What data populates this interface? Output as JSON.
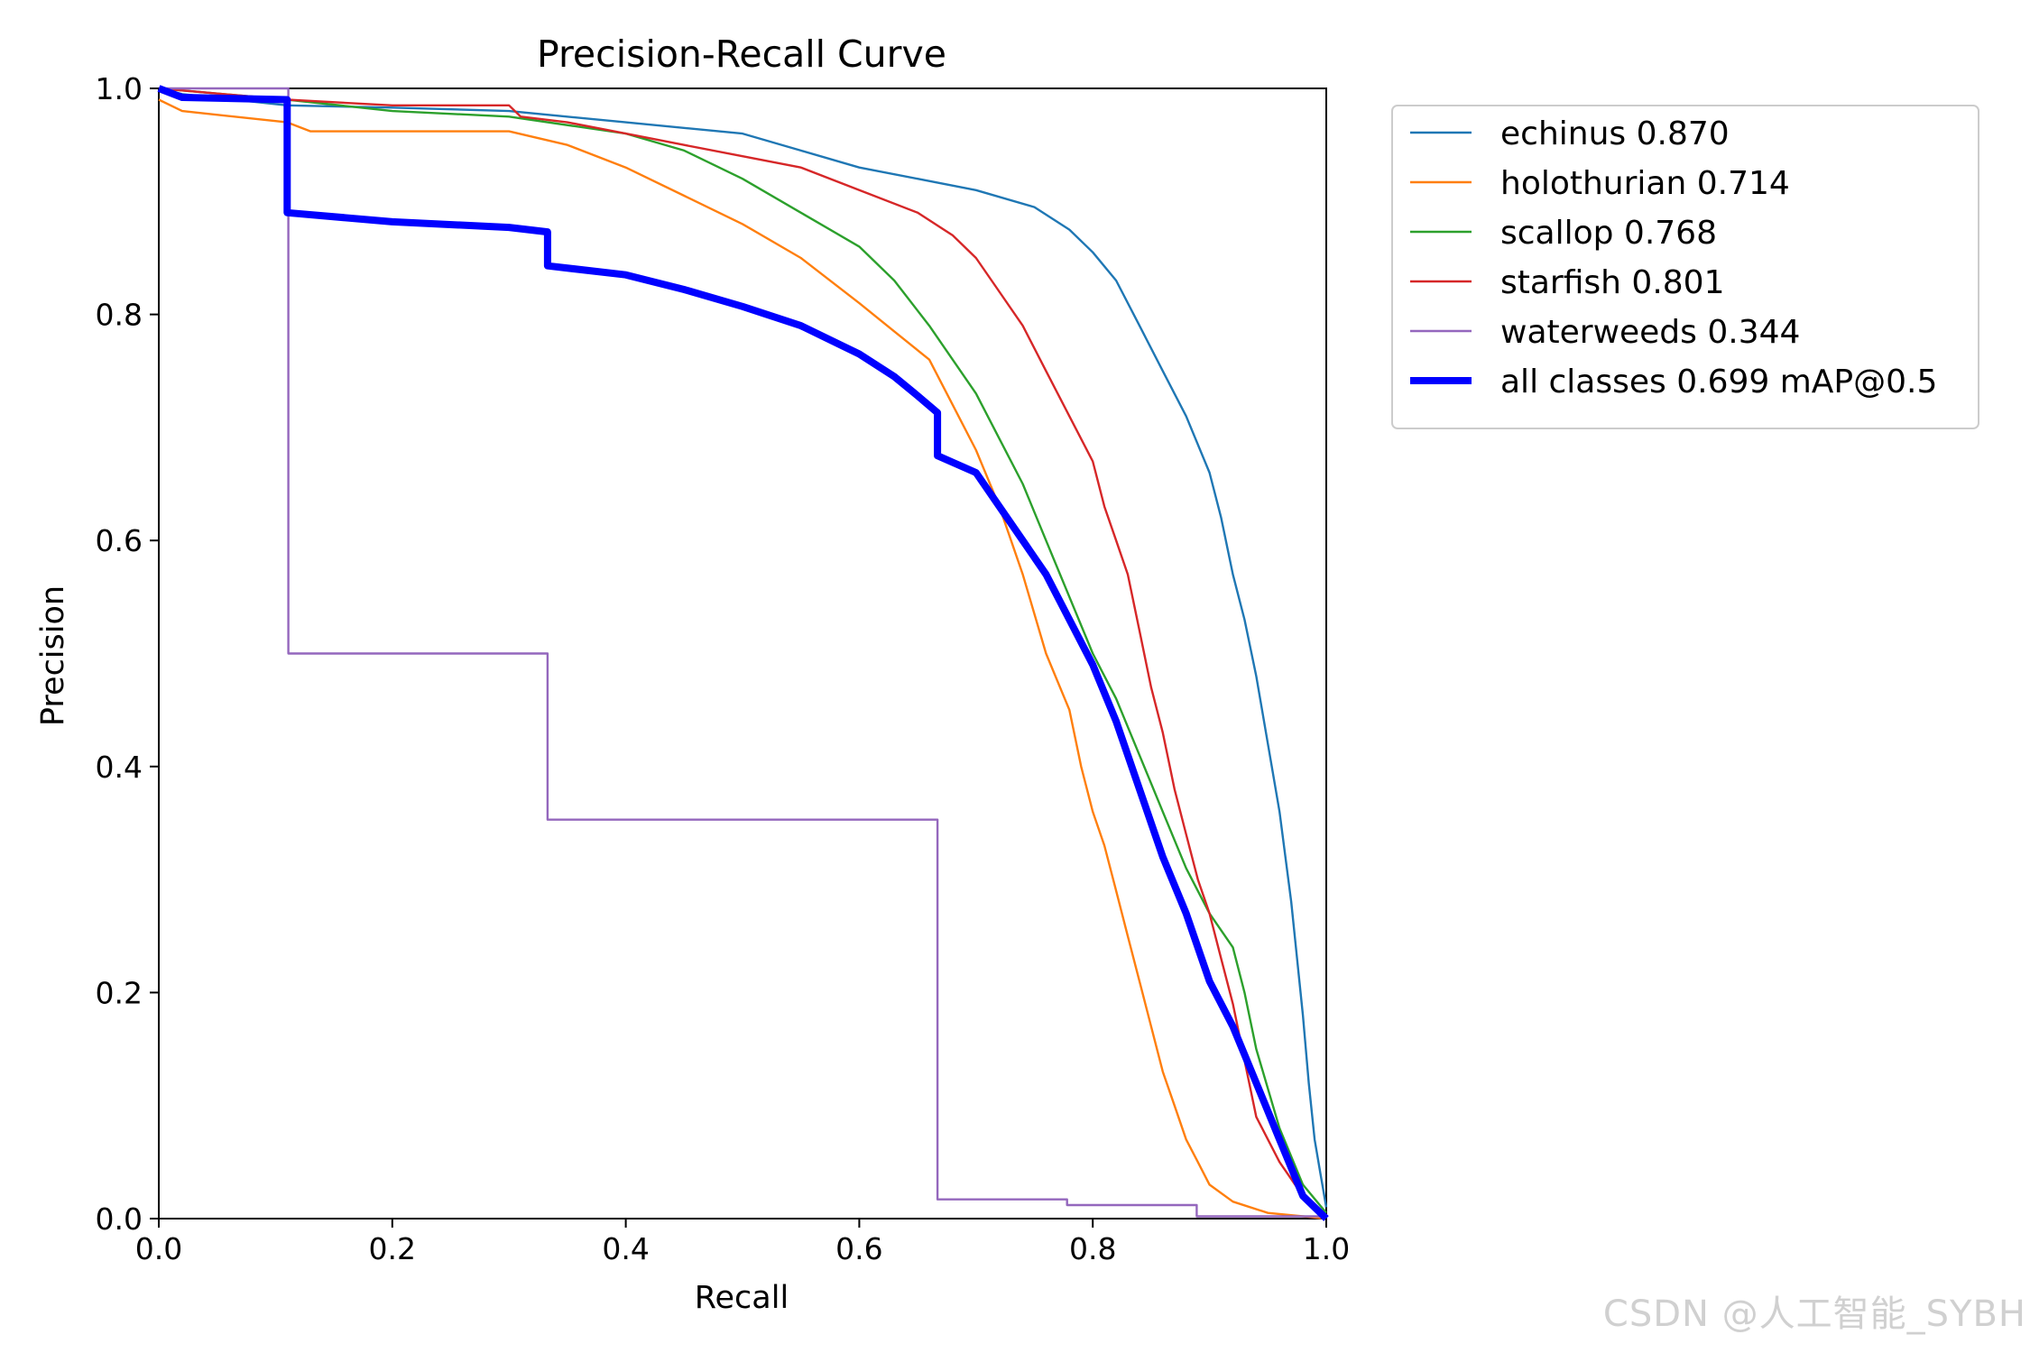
{
  "chart_data": {
    "type": "line",
    "title": "Precision-Recall Curve",
    "xlabel": "Recall",
    "ylabel": "Precision",
    "xlim": [
      0,
      1
    ],
    "ylim": [
      0,
      1
    ],
    "xticks": [
      "0.0",
      "0.2",
      "0.4",
      "0.6",
      "0.8",
      "1.0"
    ],
    "yticks": [
      "0.0",
      "0.2",
      "0.4",
      "0.6",
      "0.8",
      "1.0"
    ],
    "grid": false,
    "legend_position": "outside-right-top",
    "series": [
      {
        "name": "echinus",
        "label": "echinus 0.870",
        "color": "#1f77b4",
        "width": "thin",
        "x": [
          0.0,
          0.02,
          0.11,
          0.2,
          0.3,
          0.4,
          0.5,
          0.55,
          0.6,
          0.65,
          0.7,
          0.75,
          0.78,
          0.8,
          0.82,
          0.84,
          0.86,
          0.88,
          0.9,
          0.91,
          0.92,
          0.93,
          0.94,
          0.95,
          0.96,
          0.97,
          0.98,
          0.985,
          0.99,
          0.995,
          1.0
        ],
        "y": [
          1.0,
          0.995,
          0.985,
          0.983,
          0.98,
          0.97,
          0.96,
          0.945,
          0.93,
          0.92,
          0.91,
          0.895,
          0.875,
          0.855,
          0.83,
          0.79,
          0.75,
          0.71,
          0.66,
          0.62,
          0.57,
          0.53,
          0.48,
          0.42,
          0.36,
          0.28,
          0.18,
          0.12,
          0.07,
          0.04,
          0.01
        ]
      },
      {
        "name": "holothurian",
        "label": "holothurian 0.714",
        "color": "#ff7f0e",
        "width": "thin",
        "x": [
          0.0,
          0.02,
          0.11,
          0.13,
          0.2,
          0.3,
          0.35,
          0.4,
          0.45,
          0.5,
          0.55,
          0.6,
          0.63,
          0.66,
          0.68,
          0.7,
          0.72,
          0.74,
          0.76,
          0.78,
          0.79,
          0.8,
          0.81,
          0.82,
          0.83,
          0.84,
          0.85,
          0.86,
          0.87,
          0.88,
          0.89,
          0.9,
          0.92,
          0.95,
          1.0
        ],
        "y": [
          0.99,
          0.98,
          0.97,
          0.962,
          0.962,
          0.962,
          0.95,
          0.93,
          0.905,
          0.88,
          0.85,
          0.81,
          0.785,
          0.76,
          0.72,
          0.68,
          0.63,
          0.57,
          0.5,
          0.45,
          0.4,
          0.36,
          0.33,
          0.29,
          0.25,
          0.21,
          0.17,
          0.13,
          0.1,
          0.07,
          0.05,
          0.03,
          0.015,
          0.005,
          0.0
        ]
      },
      {
        "name": "scallop",
        "label": "scallop 0.768",
        "color": "#2ca02c",
        "width": "thin",
        "x": [
          0.0,
          0.11,
          0.2,
          0.3,
          0.4,
          0.45,
          0.5,
          0.55,
          0.6,
          0.63,
          0.66,
          0.68,
          0.7,
          0.72,
          0.74,
          0.76,
          0.78,
          0.8,
          0.82,
          0.84,
          0.86,
          0.88,
          0.9,
          0.92,
          0.93,
          0.94,
          0.96,
          0.98,
          1.0
        ],
        "y": [
          1.0,
          0.99,
          0.98,
          0.975,
          0.96,
          0.945,
          0.92,
          0.89,
          0.86,
          0.83,
          0.79,
          0.76,
          0.73,
          0.69,
          0.65,
          0.6,
          0.55,
          0.5,
          0.46,
          0.41,
          0.36,
          0.31,
          0.27,
          0.24,
          0.2,
          0.15,
          0.08,
          0.03,
          0.005
        ]
      },
      {
        "name": "starfish",
        "label": "starfish 0.801",
        "color": "#d62728",
        "width": "thin",
        "x": [
          0.0,
          0.11,
          0.2,
          0.3,
          0.31,
          0.35,
          0.4,
          0.45,
          0.5,
          0.55,
          0.6,
          0.65,
          0.68,
          0.7,
          0.72,
          0.74,
          0.76,
          0.78,
          0.8,
          0.81,
          0.82,
          0.83,
          0.84,
          0.85,
          0.86,
          0.87,
          0.88,
          0.89,
          0.9,
          0.91,
          0.92,
          0.93,
          0.94,
          0.96,
          0.98,
          1.0
        ],
        "y": [
          1.0,
          0.99,
          0.985,
          0.985,
          0.975,
          0.97,
          0.96,
          0.95,
          0.94,
          0.93,
          0.91,
          0.89,
          0.87,
          0.85,
          0.82,
          0.79,
          0.75,
          0.71,
          0.67,
          0.63,
          0.6,
          0.57,
          0.52,
          0.47,
          0.43,
          0.38,
          0.34,
          0.3,
          0.27,
          0.23,
          0.19,
          0.14,
          0.09,
          0.05,
          0.02,
          0.0
        ]
      },
      {
        "name": "waterweeds",
        "label": "waterweeds 0.344",
        "color": "#9467bd",
        "width": "thin",
        "x": [
          0.0,
          0.111,
          0.111,
          0.333,
          0.333,
          0.667,
          0.667,
          0.778,
          0.778,
          0.889,
          0.889,
          1.0
        ],
        "y": [
          1.0,
          1.0,
          0.5,
          0.5,
          0.353,
          0.353,
          0.017,
          0.017,
          0.012,
          0.012,
          0.002,
          0.002
        ]
      },
      {
        "name": "all classes",
        "label": "all classes 0.699 mAP@0.5",
        "color": "#0000ff",
        "width": "thick",
        "x": [
          0.0,
          0.02,
          0.11,
          0.11,
          0.2,
          0.3,
          0.333,
          0.333,
          0.4,
          0.45,
          0.5,
          0.55,
          0.6,
          0.63,
          0.65,
          0.667,
          0.667,
          0.7,
          0.72,
          0.74,
          0.76,
          0.78,
          0.8,
          0.82,
          0.84,
          0.86,
          0.88,
          0.9,
          0.92,
          0.94,
          0.96,
          0.98,
          1.0
        ],
        "y": [
          1.0,
          0.992,
          0.99,
          0.89,
          0.882,
          0.877,
          0.873,
          0.843,
          0.835,
          0.822,
          0.807,
          0.79,
          0.765,
          0.745,
          0.728,
          0.713,
          0.675,
          0.66,
          0.63,
          0.6,
          0.57,
          0.53,
          0.49,
          0.44,
          0.38,
          0.32,
          0.27,
          0.21,
          0.17,
          0.12,
          0.07,
          0.02,
          0.0
        ]
      }
    ]
  },
  "watermark": "CSDN @人工智能_SYBH"
}
